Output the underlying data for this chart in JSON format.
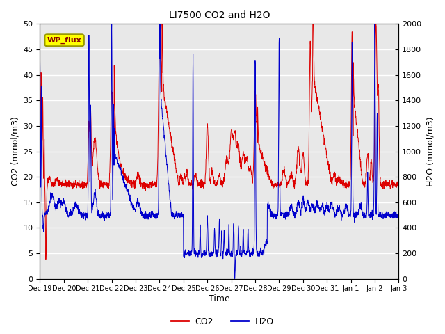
{
  "title": "LI7500 CO2 and H2O",
  "xlabel": "Time",
  "ylabel_left": "CO2 (mmol/m3)",
  "ylabel_right": "H2O (mmol/m3)",
  "ylim_left": [
    0,
    50
  ],
  "ylim_right": [
    0,
    2000
  ],
  "yticks_left": [
    0,
    5,
    10,
    15,
    20,
    25,
    30,
    35,
    40,
    45,
    50
  ],
  "yticks_right": [
    0,
    200,
    400,
    600,
    800,
    1000,
    1200,
    1400,
    1600,
    1800,
    2000
  ],
  "xtick_labels": [
    "Dec 19",
    "Dec 20",
    "Dec 21",
    "Dec 22",
    "Dec 23",
    "Dec 24",
    "Dec 25",
    "Dec 26",
    "Dec 27",
    "Dec 28",
    "Dec 29",
    "Dec 30",
    "Dec 31",
    "Jan 1",
    "Jan 2",
    "Jan 3"
  ],
  "co2_color": "#DD0000",
  "h2o_color": "#0000CC",
  "axes_facecolor": "#E8E8E8",
  "grid_color": "#FFFFFF",
  "annotation_text": "WP_flux",
  "annotation_bg": "#FFFF00",
  "annotation_border": "#999900",
  "legend_co2": "CO2",
  "legend_h2o": "H2O",
  "n_days": 15,
  "n_points": 2000
}
